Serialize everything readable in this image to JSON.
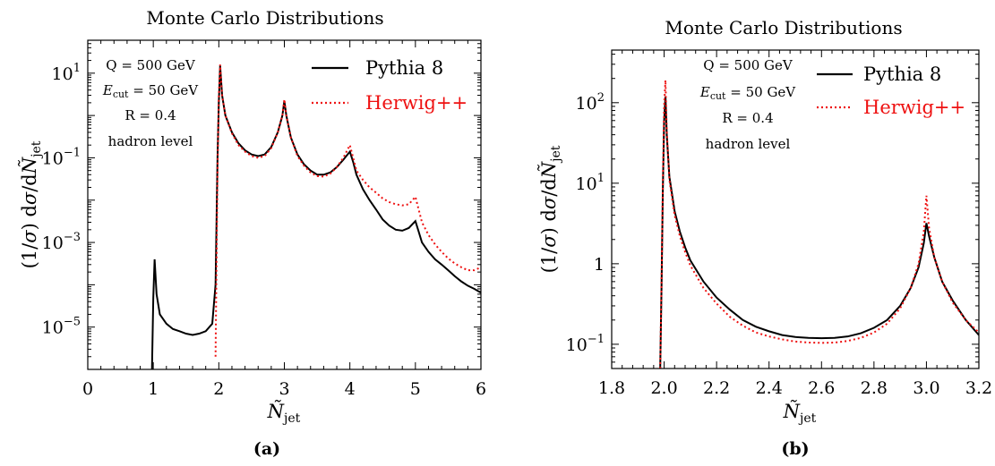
{
  "chart_data": [
    {
      "type": "line",
      "title": "Monte Carlo Distributions",
      "xlabel": "Ñ_jet",
      "ylabel": "(1/σ) dσ/dÑ_jet",
      "xlim": [
        0,
        6
      ],
      "ylim": [
        1e-06,
        60
      ],
      "yscale": "log",
      "xticks": [
        0,
        1,
        2,
        3,
        4,
        5,
        6
      ],
      "xtick_labels": [
        "0",
        "1",
        "2",
        "3",
        "4",
        "5",
        "6"
      ],
      "yticks": [
        1e-05,
        0.001,
        0.1,
        10
      ],
      "ytick_labels": [
        {
          "base": "10",
          "exp": "−5"
        },
        {
          "base": "10",
          "exp": "−3"
        },
        {
          "base": "10",
          "exp": "−1"
        },
        {
          "base": "10",
          "exp": "1"
        }
      ],
      "annotations": [
        "Q = 500 GeV",
        "E_cut = 50 GeV",
        "R = 0.4",
        "hadron level"
      ],
      "legend_position": "top-right",
      "caption": "(a)",
      "series": [
        {
          "name": "Pythia 8",
          "color": "#000000",
          "style": "solid",
          "points": [
            [
              0.98,
              1e-06
            ],
            [
              1.0,
              5e-05
            ],
            [
              1.02,
              0.0004
            ],
            [
              1.05,
              6e-05
            ],
            [
              1.1,
              2e-05
            ],
            [
              1.2,
              1.2e-05
            ],
            [
              1.3,
              9e-06
            ],
            [
              1.4,
              8e-06
            ],
            [
              1.5,
              7e-06
            ],
            [
              1.6,
              6.5e-06
            ],
            [
              1.7,
              7e-06
            ],
            [
              1.8,
              8e-06
            ],
            [
              1.9,
              1.2e-05
            ],
            [
              1.95,
              0.0001
            ],
            [
              1.98,
              0.1
            ],
            [
              2.0,
              2
            ],
            [
              2.02,
              15
            ],
            [
              2.05,
              3
            ],
            [
              2.1,
              1.0
            ],
            [
              2.2,
              0.4
            ],
            [
              2.3,
              0.22
            ],
            [
              2.4,
              0.15
            ],
            [
              2.5,
              0.12
            ],
            [
              2.6,
              0.11
            ],
            [
              2.7,
              0.12
            ],
            [
              2.8,
              0.18
            ],
            [
              2.9,
              0.4
            ],
            [
              2.97,
              1
            ],
            [
              3.0,
              2.2
            ],
            [
              3.03,
              1.0
            ],
            [
              3.1,
              0.3
            ],
            [
              3.2,
              0.12
            ],
            [
              3.3,
              0.07
            ],
            [
              3.4,
              0.05
            ],
            [
              3.5,
              0.04
            ],
            [
              3.6,
              0.04
            ],
            [
              3.7,
              0.045
            ],
            [
              3.8,
              0.06
            ],
            [
              3.9,
              0.09
            ],
            [
              4.0,
              0.14
            ],
            [
              4.05,
              0.08
            ],
            [
              4.1,
              0.04
            ],
            [
              4.2,
              0.018
            ],
            [
              4.3,
              0.01
            ],
            [
              4.4,
              0.006
            ],
            [
              4.5,
              0.0035
            ],
            [
              4.6,
              0.0025
            ],
            [
              4.7,
              0.002
            ],
            [
              4.8,
              0.0019
            ],
            [
              4.9,
              0.0022
            ],
            [
              5.0,
              0.0032
            ],
            [
              5.05,
              0.0018
            ],
            [
              5.1,
              0.001
            ],
            [
              5.2,
              0.0006
            ],
            [
              5.3,
              0.0004
            ],
            [
              5.4,
              0.0003
            ],
            [
              5.5,
              0.00022
            ],
            [
              5.6,
              0.00016
            ],
            [
              5.7,
              0.00012
            ],
            [
              5.8,
              9.5e-05
            ],
            [
              5.9,
              8e-05
            ],
            [
              6.0,
              6.5e-05
            ]
          ]
        },
        {
          "name": "Herwig++",
          "color": "#ee1111",
          "style": "dotted",
          "points": [
            [
              1.95,
              2e-06
            ],
            [
              1.98,
              0.05
            ],
            [
              2.0,
              3
            ],
            [
              2.02,
              16
            ],
            [
              2.05,
              3
            ],
            [
              2.1,
              1.0
            ],
            [
              2.2,
              0.38
            ],
            [
              2.3,
              0.2
            ],
            [
              2.4,
              0.14
            ],
            [
              2.5,
              0.11
            ],
            [
              2.6,
              0.1
            ],
            [
              2.7,
              0.11
            ],
            [
              2.8,
              0.17
            ],
            [
              2.9,
              0.4
            ],
            [
              2.97,
              1
            ],
            [
              3.0,
              2.4
            ],
            [
              3.03,
              1.0
            ],
            [
              3.1,
              0.3
            ],
            [
              3.2,
              0.11
            ],
            [
              3.3,
              0.065
            ],
            [
              3.4,
              0.045
            ],
            [
              3.5,
              0.037
            ],
            [
              3.6,
              0.036
            ],
            [
              3.7,
              0.042
            ],
            [
              3.8,
              0.06
            ],
            [
              3.9,
              0.1
            ],
            [
              4.0,
              0.2
            ],
            [
              4.05,
              0.1
            ],
            [
              4.1,
              0.05
            ],
            [
              4.2,
              0.03
            ],
            [
              4.3,
              0.02
            ],
            [
              4.4,
              0.015
            ],
            [
              4.5,
              0.011
            ],
            [
              4.6,
              0.009
            ],
            [
              4.7,
              0.008
            ],
            [
              4.8,
              0.0075
            ],
            [
              4.9,
              0.008
            ],
            [
              5.0,
              0.012
            ],
            [
              5.05,
              0.006
            ],
            [
              5.1,
              0.003
            ],
            [
              5.2,
              0.0015
            ],
            [
              5.3,
              0.0009
            ],
            [
              5.4,
              0.0006
            ],
            [
              5.5,
              0.00042
            ],
            [
              5.6,
              0.00032
            ],
            [
              5.7,
              0.00026
            ],
            [
              5.8,
              0.00022
            ],
            [
              5.9,
              0.00022
            ],
            [
              6.0,
              0.00026
            ]
          ]
        }
      ]
    },
    {
      "type": "line",
      "title": "Monte Carlo Distributions",
      "xlabel": "Ñ_jet",
      "ylabel": "(1/σ) dσ/dÑ_jet",
      "xlim": [
        1.8,
        3.2
      ],
      "ylim": [
        0.05,
        450
      ],
      "yscale": "log",
      "xticks": [
        1.8,
        2.0,
        2.2,
        2.4,
        2.6,
        2.8,
        3.0,
        3.2
      ],
      "xtick_labels": [
        "1.8",
        "2.0",
        "2.2",
        "2.4",
        "2.6",
        "2.8",
        "3.0",
        "3.2"
      ],
      "yticks": [
        0.1,
        1,
        10,
        100
      ],
      "ytick_labels": [
        {
          "base": "10",
          "exp": "−1"
        },
        {
          "base": "1",
          "exp": ""
        },
        {
          "base": "10",
          "exp": "1"
        },
        {
          "base": "10",
          "exp": "2"
        }
      ],
      "annotations": [
        "Q = 500 GeV",
        "E_cut = 50 GeV",
        "R = 0.4",
        "hadron level"
      ],
      "legend_position": "top-right",
      "caption": "(b)",
      "series": [
        {
          "name": "Pythia 8",
          "color": "#000000",
          "style": "solid",
          "points": [
            [
              1.985,
              0.05
            ],
            [
              1.99,
              0.5
            ],
            [
              1.995,
              8
            ],
            [
              2.0,
              60
            ],
            [
              2.005,
              120
            ],
            [
              2.01,
              40
            ],
            [
              2.02,
              12
            ],
            [
              2.04,
              4.5
            ],
            [
              2.06,
              2.5
            ],
            [
              2.08,
              1.6
            ],
            [
              2.1,
              1.1
            ],
            [
              2.15,
              0.6
            ],
            [
              2.2,
              0.38
            ],
            [
              2.25,
              0.27
            ],
            [
              2.3,
              0.2
            ],
            [
              2.35,
              0.165
            ],
            [
              2.4,
              0.145
            ],
            [
              2.45,
              0.13
            ],
            [
              2.5,
              0.123
            ],
            [
              2.55,
              0.12
            ],
            [
              2.6,
              0.119
            ],
            [
              2.65,
              0.12
            ],
            [
              2.7,
              0.125
            ],
            [
              2.75,
              0.137
            ],
            [
              2.8,
              0.16
            ],
            [
              2.85,
              0.2
            ],
            [
              2.9,
              0.3
            ],
            [
              2.94,
              0.5
            ],
            [
              2.97,
              0.9
            ],
            [
              2.99,
              1.8
            ],
            [
              3.0,
              3.2
            ],
            [
              3.01,
              2.2
            ],
            [
              3.03,
              1.2
            ],
            [
              3.06,
              0.6
            ],
            [
              3.1,
              0.35
            ],
            [
              3.15,
              0.2
            ],
            [
              3.2,
              0.13
            ]
          ]
        },
        {
          "name": "Herwig++",
          "color": "#ee1111",
          "style": "dotted",
          "points": [
            [
              1.985,
              0.05
            ],
            [
              1.99,
              0.6
            ],
            [
              1.995,
              10
            ],
            [
              2.0,
              90
            ],
            [
              2.005,
              190
            ],
            [
              2.01,
              45
            ],
            [
              2.02,
              11
            ],
            [
              2.04,
              4
            ],
            [
              2.06,
              2.2
            ],
            [
              2.08,
              1.4
            ],
            [
              2.1,
              0.95
            ],
            [
              2.15,
              0.5
            ],
            [
              2.2,
              0.32
            ],
            [
              2.25,
              0.22
            ],
            [
              2.3,
              0.17
            ],
            [
              2.35,
              0.14
            ],
            [
              2.4,
              0.125
            ],
            [
              2.45,
              0.115
            ],
            [
              2.5,
              0.108
            ],
            [
              2.55,
              0.105
            ],
            [
              2.6,
              0.104
            ],
            [
              2.65,
              0.105
            ],
            [
              2.7,
              0.11
            ],
            [
              2.75,
              0.12
            ],
            [
              2.8,
              0.14
            ],
            [
              2.85,
              0.18
            ],
            [
              2.9,
              0.28
            ],
            [
              2.94,
              0.5
            ],
            [
              2.97,
              1.0
            ],
            [
              2.99,
              2.5
            ],
            [
              3.0,
              7
            ],
            [
              3.01,
              2.8
            ],
            [
              3.03,
              1.2
            ],
            [
              3.06,
              0.6
            ],
            [
              3.1,
              0.33
            ],
            [
              3.15,
              0.2
            ],
            [
              3.2,
              0.14
            ]
          ]
        }
      ]
    }
  ]
}
